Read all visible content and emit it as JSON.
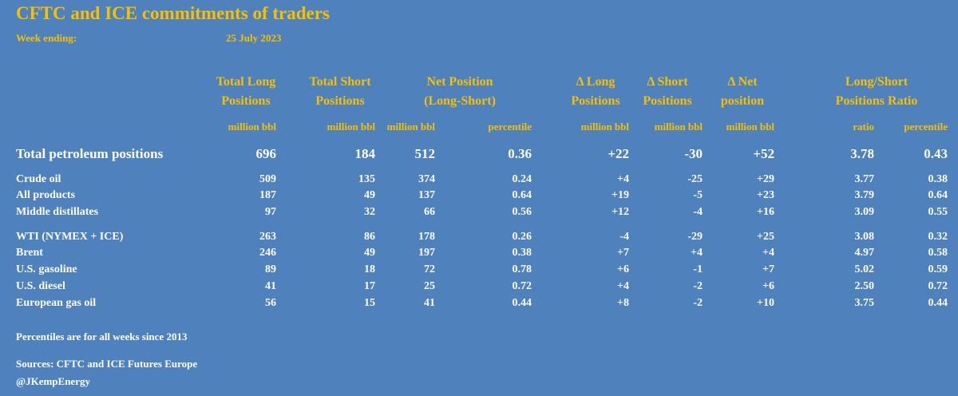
{
  "title": "CFTC and ICE commitments of traders",
  "week_label": "Week ending:",
  "week_value": "25 July 2023",
  "headers": {
    "total_long": [
      "Total Long",
      "Positions"
    ],
    "total_short": [
      "Total Short",
      "Positions"
    ],
    "net": [
      "Net Position",
      "(Long-Short)"
    ],
    "d_long": [
      "Δ Long",
      "Positions"
    ],
    "d_short": [
      "Δ Short",
      "Positions"
    ],
    "d_net": [
      "Δ Net",
      "position"
    ],
    "ratio": [
      "Long/Short",
      "Positions Ratio"
    ]
  },
  "units": [
    "million bbl",
    "million bbl",
    "million bbl",
    "percentile",
    "million bbl",
    "million bbl",
    "million bbl",
    "ratio",
    "percentile"
  ],
  "rows": [
    {
      "label": "Total petroleum positions",
      "values": [
        "696",
        "184",
        "512",
        "0.36",
        "+22",
        "-30",
        "+52",
        "3.78",
        "0.43"
      ]
    },
    {
      "label": "Crude oil",
      "values": [
        "509",
        "135",
        "374",
        "0.24",
        "+4",
        "-25",
        "+29",
        "3.77",
        "0.38"
      ]
    },
    {
      "label": "All products",
      "values": [
        "187",
        "49",
        "137",
        "0.64",
        "+19",
        "-5",
        "+23",
        "3.79",
        "0.64"
      ]
    },
    {
      "label": "Middle distillates",
      "values": [
        "97",
        "32",
        "66",
        "0.56",
        "+12",
        "-4",
        "+16",
        "3.09",
        "0.55"
      ]
    },
    {
      "label": "WTI (NYMEX + ICE)",
      "values": [
        "263",
        "86",
        "178",
        "0.26",
        "-4",
        "-29",
        "+25",
        "3.08",
        "0.32"
      ]
    },
    {
      "label": "Brent",
      "values": [
        "246",
        "49",
        "197",
        "0.38",
        "+7",
        "+4",
        "+4",
        "4.97",
        "0.58"
      ]
    },
    {
      "label": "U.S. gasoline",
      "values": [
        "89",
        "18",
        "72",
        "0.78",
        "+6",
        "-1",
        "+7",
        "5.02",
        "0.59"
      ]
    },
    {
      "label": "U.S. diesel",
      "values": [
        "41",
        "17",
        "25",
        "0.72",
        "+4",
        "-2",
        "+6",
        "2.50",
        "0.72"
      ]
    },
    {
      "label": "European gas oil",
      "values": [
        "56",
        "15",
        "41",
        "0.44",
        "+8",
        "-2",
        "+10",
        "3.75",
        "0.44"
      ]
    }
  ],
  "notes": {
    "percentiles": "Percentiles are for all weeks since 2013",
    "sources": "Sources: CFTC and ICE Futures Europe",
    "handle": "@JKempEnergy"
  },
  "colors": {
    "background": "#4f81bd",
    "accent": "#f6c000",
    "text": "#ffffff"
  }
}
